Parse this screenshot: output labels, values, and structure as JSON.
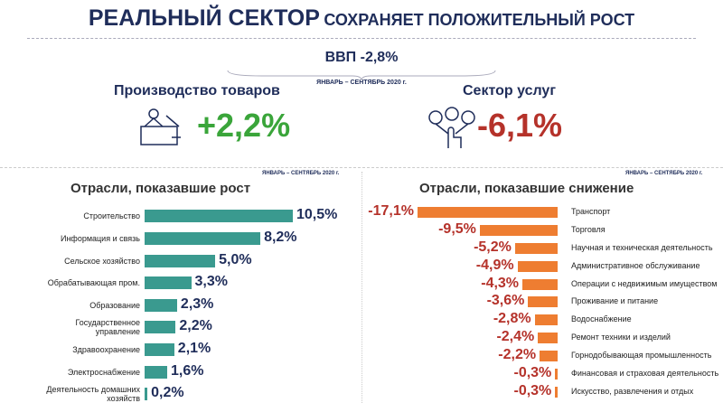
{
  "header": {
    "title_main": "РЕАЛЬНЫЙ СЕКТОР",
    "title_rest": "СОХРАНЯЕТ ПОЛОЖИТЕЛЬНЫЙ РОСТ",
    "gdp": "ВВП -2,8%",
    "period": "ЯНВАРЬ – СЕНТЯБРЬ 2020 г."
  },
  "goods": {
    "label": "Производство товаров",
    "value": "+2,2%"
  },
  "services": {
    "label": "Сектор услуг",
    "value": "-6,1%"
  },
  "chart_data": [
    {
      "type": "bar",
      "orientation": "horizontal",
      "title": "Отрасли, показавшие рост",
      "subtitle": "ЯНВАРЬ – СЕНТЯБРЬ 2020 г.",
      "color": "#3a9a8f",
      "label_color": "#1f2d5a",
      "categories": [
        "Строительство",
        "Информация и связь",
        "Сельское хозяйство",
        "Обрабатывающая пром.",
        "Образование",
        "Государственное управление",
        "Здравоохранение",
        "Электроснабжение",
        "Деятельность домашних хозяйств"
      ],
      "values": [
        10.5,
        8.2,
        5.0,
        3.3,
        2.3,
        2.2,
        2.1,
        1.6,
        0.2
      ],
      "value_labels": [
        "10,5%",
        "8,2%",
        "5,0%",
        "3,3%",
        "2,3%",
        "2,2%",
        "2,1%",
        "1,6%",
        "0,2%"
      ]
    },
    {
      "type": "bar",
      "orientation": "horizontal",
      "title": "Отрасли, показавшие снижение",
      "subtitle": "ЯНВАРЬ – СЕНТЯБРЬ 2020 г.",
      "color": "#ee7d31",
      "label_color": "#b5322a",
      "categories": [
        "Транспорт",
        "Торговля",
        "Научная и техническая деятельность",
        "Административное обслуживание",
        "Операции с недвижимым имуществом",
        "Проживание и питание",
        "Водоснабжение",
        "Ремонт техники и изделий",
        "Горнодобывающая промышленность",
        "Финансовая и страховая деятельность",
        "Искусство, развлечения и отдых"
      ],
      "values": [
        -17.1,
        -9.5,
        -5.2,
        -4.9,
        -4.3,
        -3.6,
        -2.8,
        -2.4,
        -2.2,
        -0.3,
        -0.3
      ],
      "value_labels": [
        "-17,1%",
        "-9,5%",
        "-5,2%",
        "-4,9%",
        "-4,3%",
        "-3,6%",
        "-2,8%",
        "-2,4%",
        "-2,2%",
        "-0,3%",
        "-0,3%"
      ]
    }
  ]
}
